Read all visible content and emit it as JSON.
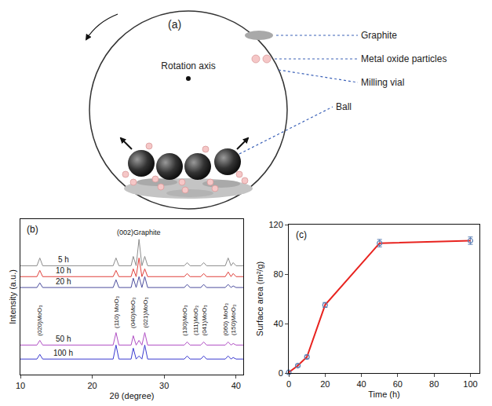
{
  "diagram": {
    "panel": "(a)",
    "rotation_axis": "Rotation axis",
    "legend": {
      "graphite": "Graphite",
      "particles": "Metal oxide particles"
    },
    "callouts": {
      "vial": "Milling vial",
      "ball": "Ball"
    }
  },
  "chart_data": [
    {
      "type": "line",
      "panel": "(b)",
      "x_label": "2θ (degree)",
      "y_label": "Intensity (a.u.)",
      "x": [
        10,
        12.3,
        12.7,
        13.1,
        16,
        20,
        22.9,
        23.3,
        23.7,
        25.4,
        25.7,
        26.1,
        26.5,
        26.9,
        27.3,
        27.7,
        30,
        32.8,
        33.2,
        33.6,
        35.1,
        35.5,
        35.9,
        38.5,
        38.9,
        39.3,
        39.6,
        40,
        41
      ],
      "xlim": [
        10,
        41
      ],
      "xticks": [
        10,
        20,
        30,
        40
      ],
      "ylim": [
        0,
        100
      ],
      "tick_labels": "x",
      "series": [
        {
          "name": "5 h",
          "color": "#8c8c8c",
          "values": [
            70,
            70,
            75,
            70,
            70,
            70,
            70,
            75,
            70,
            70,
            76,
            70,
            87,
            70,
            76,
            70,
            70,
            70,
            72,
            70,
            70,
            72,
            70,
            70,
            75,
            70,
            72,
            70,
            70
          ]
        },
        {
          "name": "10 h",
          "color": "#e0413c",
          "values": [
            63,
            63,
            67,
            63,
            63,
            63,
            63,
            67,
            63,
            63,
            68,
            63,
            75,
            63,
            68,
            63,
            63,
            63,
            65,
            63,
            63,
            65,
            63,
            63,
            66,
            63,
            65,
            63,
            63
          ]
        },
        {
          "name": "20 h",
          "color": "#4d4f9e",
          "values": [
            56,
            56,
            59,
            56,
            56,
            56,
            56,
            61,
            56,
            56,
            62,
            56,
            63,
            56,
            63,
            56,
            56,
            56,
            58,
            56,
            56,
            58,
            56,
            56,
            58,
            56,
            57,
            56,
            56
          ]
        },
        {
          "name": "50 h",
          "color": "#b04fc4",
          "values": [
            19,
            19,
            22,
            19,
            19,
            19,
            19,
            27,
            19,
            19,
            25,
            19,
            22,
            19,
            27,
            19,
            19,
            19,
            21,
            19,
            19,
            21,
            19,
            19,
            21,
            19,
            20,
            19,
            19
          ]
        },
        {
          "name": "100 h",
          "color": "#3a3ad0",
          "values": [
            10,
            10,
            13,
            10,
            10,
            10,
            10,
            19,
            10,
            10,
            17,
            10,
            12,
            10,
            19,
            10,
            10,
            10,
            12,
            10,
            10,
            12,
            10,
            10,
            12,
            10,
            11,
            10,
            10
          ]
        }
      ],
      "annotations": [
        {
          "text": "(002)Graphite",
          "x": 26.5,
          "y": 88
        },
        {
          "text": "(020)MoO₃",
          "x": 12.7,
          "y": 24
        },
        {
          "text": "(110) MoO₃",
          "x": 23.3,
          "y": 29
        },
        {
          "text": "(040)MoO₃",
          "x": 25.6,
          "y": 29
        },
        {
          "text": "(021)MoO₃",
          "x": 27.4,
          "y": 29
        },
        {
          "text": "(130)MoO₃",
          "x": 32.9,
          "y": 24
        },
        {
          "text": "(111)MoO₃",
          "x": 34.4,
          "y": 24
        },
        {
          "text": "(041)MoO₃",
          "x": 35.6,
          "y": 24
        },
        {
          "text": "(060) MoO₃",
          "x": 38.5,
          "y": 24
        },
        {
          "text": "(150)MoO₃",
          "x": 39.7,
          "y": 24
        }
      ]
    },
    {
      "type": "line",
      "panel": "(c)",
      "x_label": "Time (h)",
      "y_label": "Surface area (m²/g)",
      "x": [
        0,
        5,
        10,
        20,
        50,
        100
      ],
      "xlim": [
        0,
        105
      ],
      "xticks": [
        0,
        20,
        40,
        60,
        80,
        100
      ],
      "ylim": [
        0,
        120
      ],
      "yticks": [
        0,
        40,
        80,
        120
      ],
      "marker": "circle-open",
      "series": [
        {
          "color": "#e8231f",
          "values": [
            0.5,
            6,
            13,
            55,
            105,
            107
          ],
          "error": [
            1,
            1,
            1.5,
            2,
            3,
            3
          ]
        }
      ]
    }
  ]
}
